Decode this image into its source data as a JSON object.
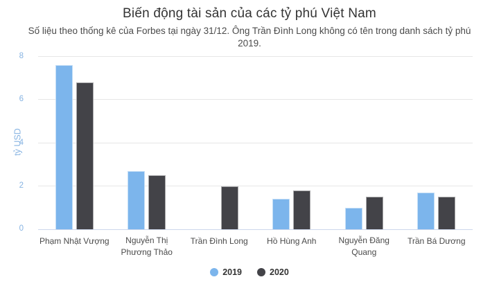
{
  "header": {
    "title": "Biến động tài sản của các tỷ phú Việt Nam",
    "subtitle": "Số liệu theo thống kê của Forbes tại ngày 31/12. Ông Trần Đình Long không có tên trong danh sách tỷ phú 2019."
  },
  "chart_data": {
    "type": "bar",
    "orientation": "vertical",
    "title": "Biến động tài sản của các tỷ phú Việt Nam",
    "subtitle": "Số liệu theo thống kê của Forbes tại ngày 31/12. Ông Trần Đình Long không có tên trong danh sách tỷ phú 2019.",
    "categories": [
      "Phạm Nhật Vượng",
      "Nguyễn Thị Phương Thảo",
      "Trần Đình Long",
      "Hồ Hùng Anh",
      "Nguyễn Đăng Quang",
      "Trần Bá Dương"
    ],
    "series": [
      {
        "name": "2019",
        "color": "#7cb5ec",
        "values": [
          7.6,
          2.7,
          null,
          1.4,
          1.0,
          1.7
        ]
      },
      {
        "name": "2020",
        "color": "#434348",
        "values": [
          6.8,
          2.5,
          2.0,
          1.8,
          1.5,
          1.5
        ]
      }
    ],
    "xlabel": "",
    "ylabel": "tỷ USD",
    "ylim": [
      0,
      8
    ],
    "yticks": [
      0,
      2,
      4,
      6,
      8
    ],
    "grid": true,
    "legend_position": "bottom"
  },
  "colors": {
    "background": "#ffffff",
    "series_2019": "#7cb5ec",
    "series_2020": "#434348",
    "gridline": "#e6e6e6",
    "axis_line": "#ccd6eb",
    "y_axis_text": "#86b3e2",
    "x_axis_text": "#4a4a4a",
    "title_text": "#333333",
    "subtitle_text": "#4a4a4a",
    "legend_text": "#333333"
  }
}
